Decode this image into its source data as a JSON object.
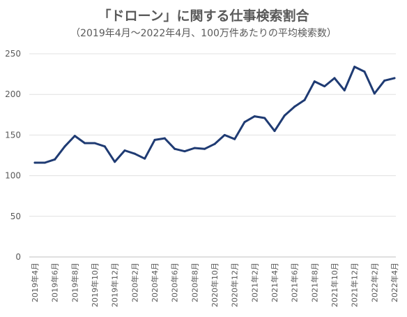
{
  "chart_data": {
    "type": "line",
    "title": "「ドローン」に関する仕事検索割合",
    "subtitle": "（2019年4月〜2022年4月、100万件あたりの平均検索数）",
    "xlabel": "",
    "ylabel": "",
    "ylim": [
      0,
      250
    ],
    "yticks": [
      0,
      50,
      100,
      150,
      200,
      250
    ],
    "grid": true,
    "line_color": "#1f3b73",
    "x": [
      "2019年4月",
      "2019年5月",
      "2019年6月",
      "2019年7月",
      "2019年8月",
      "2019年9月",
      "2019年10月",
      "2019年11月",
      "2019年12月",
      "2020年1月",
      "2020年2月",
      "2020年3月",
      "2020年4月",
      "2020年5月",
      "2020年6月",
      "2020年7月",
      "2020年8月",
      "2020年9月",
      "2020年10月",
      "2020年11月",
      "2020年12月",
      "2021年1月",
      "2021年2月",
      "2021年3月",
      "2021年4月",
      "2021年5月",
      "2021年6月",
      "2021年7月",
      "2021年8月",
      "2021年9月",
      "2021年10月",
      "2021年11月",
      "2021年12月",
      "2022年1月",
      "2022年2月",
      "2022年3月",
      "2022年4月"
    ],
    "x_tick_labels": [
      "2019年4月",
      "2019年6月",
      "2019年8月",
      "2019年10月",
      "2019年12月",
      "2020年2月",
      "2020年4月",
      "2020年6月",
      "2020年8月",
      "2020年10月",
      "2020年12月",
      "2021年2月",
      "2021年4月",
      "2021年6月",
      "2021年8月",
      "2021年10月",
      "2021年12月",
      "2022年2月",
      "2022年4月"
    ],
    "series": [
      {
        "values": [
          116,
          116,
          120,
          136,
          149,
          140,
          140,
          136,
          117,
          131,
          127,
          121,
          144,
          146,
          133,
          130,
          134,
          133,
          139,
          150,
          145,
          166,
          173,
          171,
          155,
          174,
          185,
          193,
          216,
          210,
          220,
          205,
          234,
          228,
          201,
          217,
          220
        ]
      }
    ]
  }
}
